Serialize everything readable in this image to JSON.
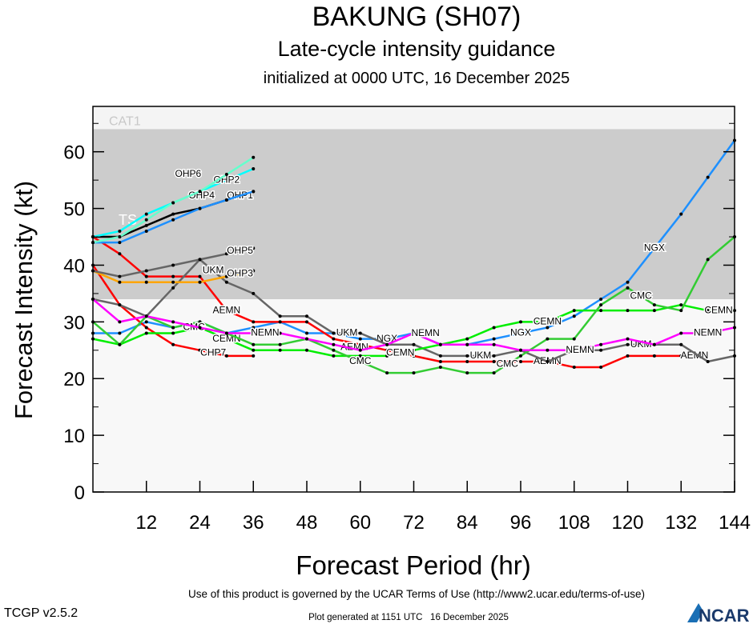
{
  "chart_data": {
    "type": "line",
    "title": "BAKUNG (SH07)",
    "subtitle": "Late-cycle intensity guidance",
    "subtitle2": "initialized at 0000 UTC, 16 December 2025",
    "xlabel": "Forecast Period (hr)",
    "ylabel": "Forecast Intensity (kt)",
    "xlim": [
      0,
      144
    ],
    "ylim": [
      0,
      68
    ],
    "xticks": [
      12,
      24,
      36,
      48,
      60,
      72,
      84,
      96,
      108,
      120,
      132,
      144
    ],
    "yticks": [
      0,
      10,
      20,
      30,
      40,
      50,
      60
    ],
    "bands": [
      {
        "name": "TS",
        "from": 34,
        "to": 64,
        "color": "#cccccc"
      },
      {
        "name": "CAT1",
        "from": 64,
        "to": 68,
        "color": "#f4f4f4"
      }
    ],
    "x": [
      0,
      6,
      12,
      18,
      24,
      30,
      36,
      42,
      48,
      54,
      60,
      66,
      72,
      78,
      84,
      90,
      96,
      102,
      108,
      114,
      120,
      126,
      132,
      138,
      144
    ],
    "series": [
      {
        "name": "NGX",
        "color": "#1e90ff",
        "labels": [
          66,
          96,
          126
        ],
        "values": [
          28,
          28,
          30,
          29,
          30,
          28,
          29,
          30,
          28,
          28,
          27,
          27,
          28,
          26,
          26,
          27,
          28,
          29,
          31,
          34,
          37,
          43,
          49,
          55.5,
          62
        ]
      },
      {
        "name": "AEMN",
        "color": "#ff0000",
        "labels": [
          30,
          63,
          102,
          135
        ],
        "values": [
          45,
          42,
          38,
          38,
          38,
          32,
          30,
          30,
          30,
          27,
          26,
          25,
          24,
          23,
          23,
          23,
          23,
          23,
          22,
          22,
          24,
          24,
          24,
          null,
          null
        ]
      },
      {
        "name": "CHP7",
        "color": "#ff0000",
        "labels": [
          27
        ],
        "values": [
          40,
          33,
          29,
          26,
          25,
          24,
          24,
          null,
          null,
          null,
          null,
          null,
          null,
          null,
          null,
          null,
          null,
          null,
          null,
          null,
          null,
          null,
          null,
          null,
          null
        ]
      },
      {
        "name": "UKM",
        "color": "#666666",
        "labels": [
          27,
          57,
          87,
          123
        ],
        "values": [
          34,
          33,
          31,
          36,
          41,
          37,
          35,
          31,
          31,
          28,
          28,
          26,
          26,
          24,
          24,
          24,
          25,
          23,
          25,
          25,
          26,
          26,
          26,
          23,
          24
        ]
      },
      {
        "name": "CEMN",
        "color": "#00ee00",
        "labels": [
          30,
          69,
          102,
          141
        ],
        "values": [
          27,
          26,
          28,
          28,
          29,
          27,
          25,
          25,
          25,
          24,
          24,
          24,
          25,
          26,
          27,
          29,
          30,
          30,
          32,
          32,
          32,
          32,
          33,
          32,
          32
        ]
      },
      {
        "name": "CMC",
        "color": "#33cc33",
        "labels": [
          27,
          60,
          93,
          123
        ],
        "values": [
          30,
          26,
          31,
          29,
          30,
          28,
          26,
          26,
          27,
          25,
          23,
          21,
          21,
          22,
          21,
          21,
          24,
          27,
          27,
          33,
          36,
          33,
          32,
          41,
          45
        ]
      },
      {
        "name": "NEMN",
        "color": "#ff00ff",
        "labels": [
          30,
          66,
          105,
          138
        ],
        "values": [
          34,
          30,
          31,
          30,
          29,
          28,
          28,
          28,
          27,
          26,
          25,
          26,
          28,
          26,
          26,
          26,
          25,
          25,
          25,
          26,
          27,
          26,
          28,
          28,
          29
        ]
      },
      {
        "name": "OHP1",
        "color": "#000000",
        "labels": [
          33
        ],
        "values": [
          45,
          45,
          47,
          49,
          50,
          51.5,
          53,
          null,
          null,
          null,
          null,
          null,
          null,
          null,
          null,
          null,
          null,
          null,
          null,
          null,
          null,
          null,
          null,
          null,
          null
        ]
      },
      {
        "name": "OHP2",
        "color": "#00ffff",
        "labels": [
          30
        ],
        "values": [
          45,
          46,
          49,
          51,
          53,
          55,
          57,
          null,
          null,
          null,
          null,
          null,
          null,
          null,
          null,
          null,
          null,
          null,
          null,
          null,
          null,
          null,
          null,
          null,
          null
        ]
      },
      {
        "name": "OHP3",
        "color": "#ffa500",
        "labels": [
          33
        ],
        "values": [
          39,
          37,
          37,
          37,
          37,
          38,
          39,
          null,
          null,
          null,
          null,
          null,
          null,
          null,
          null,
          null,
          null,
          null,
          null,
          null,
          null,
          null,
          null,
          null,
          null
        ]
      },
      {
        "name": "OHP4",
        "color": "#1e90ff",
        "labels": [
          33
        ],
        "values": [
          44,
          44,
          46,
          48,
          50,
          51.5,
          53,
          null,
          null,
          null,
          null,
          null,
          null,
          null,
          null,
          null,
          null,
          null,
          null,
          null,
          null,
          null,
          null,
          null,
          null
        ]
      },
      {
        "name": "OHP5",
        "color": "#666666",
        "labels": [
          33
        ],
        "values": [
          39,
          38,
          39,
          40,
          41,
          42,
          43,
          null,
          null,
          null,
          null,
          null,
          null,
          null,
          null,
          null,
          null,
          null,
          null,
          null,
          null,
          null,
          null,
          null,
          null
        ]
      },
      {
        "name": "OHP6",
        "color": "#66ffcc",
        "labels": [
          30
        ],
        "values": [
          44,
          45,
          48,
          51,
          53,
          56,
          59,
          null,
          null,
          null,
          null,
          null,
          null,
          null,
          null,
          null,
          null,
          null,
          null,
          null,
          null,
          null,
          null,
          null,
          null
        ]
      }
    ]
  },
  "footer": {
    "terms": "Use of this product is governed by the UCAR Terms of Use (http://www2.ucar.edu/terms-of-use)",
    "version": "TCGP v2.5.2",
    "generated": "Plot generated at 1151 UTC   16 December 2025",
    "logo": "NCAR"
  }
}
